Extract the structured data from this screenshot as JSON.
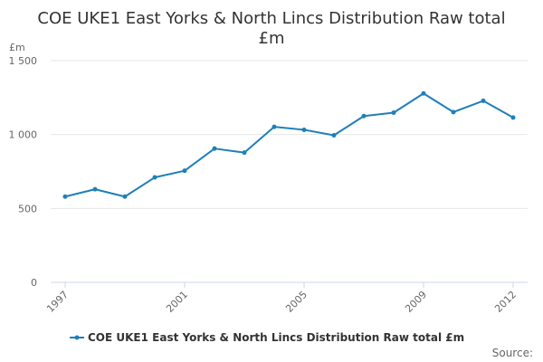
{
  "chart_data": {
    "type": "line",
    "title_lines": [
      "COE UKE1 East Yorks & North Lincs Distribution Raw total",
      "£m"
    ],
    "y_unit": "£m",
    "x": [
      1997,
      1998,
      1999,
      2000,
      2001,
      2002,
      2003,
      2004,
      2005,
      2006,
      2007,
      2008,
      2009,
      2010,
      2011,
      2012
    ],
    "x_tick_labels": [
      "1997",
      "2001",
      "2005",
      "2009",
      "2012"
    ],
    "x_tick_values": [
      1997,
      2001,
      2005,
      2009,
      2012
    ],
    "ylim": [
      0,
      1500
    ],
    "y_ticks": [
      0,
      500,
      1000,
      1500
    ],
    "y_tick_labels": [
      "0",
      "500",
      "1 000",
      "1 500"
    ],
    "grid": true,
    "series": [
      {
        "name": "COE UKE1 East Yorks & North Lincs Distribution Raw total £m",
        "color": "#1f7fb9",
        "values": [
          580,
          630,
          580,
          710,
          755,
          905,
          878,
          1052,
          1032,
          995,
          1125,
          1148,
          1278,
          1152,
          1228,
          1115
        ]
      }
    ],
    "legend_position": "bottom",
    "source_label": "Source:"
  }
}
